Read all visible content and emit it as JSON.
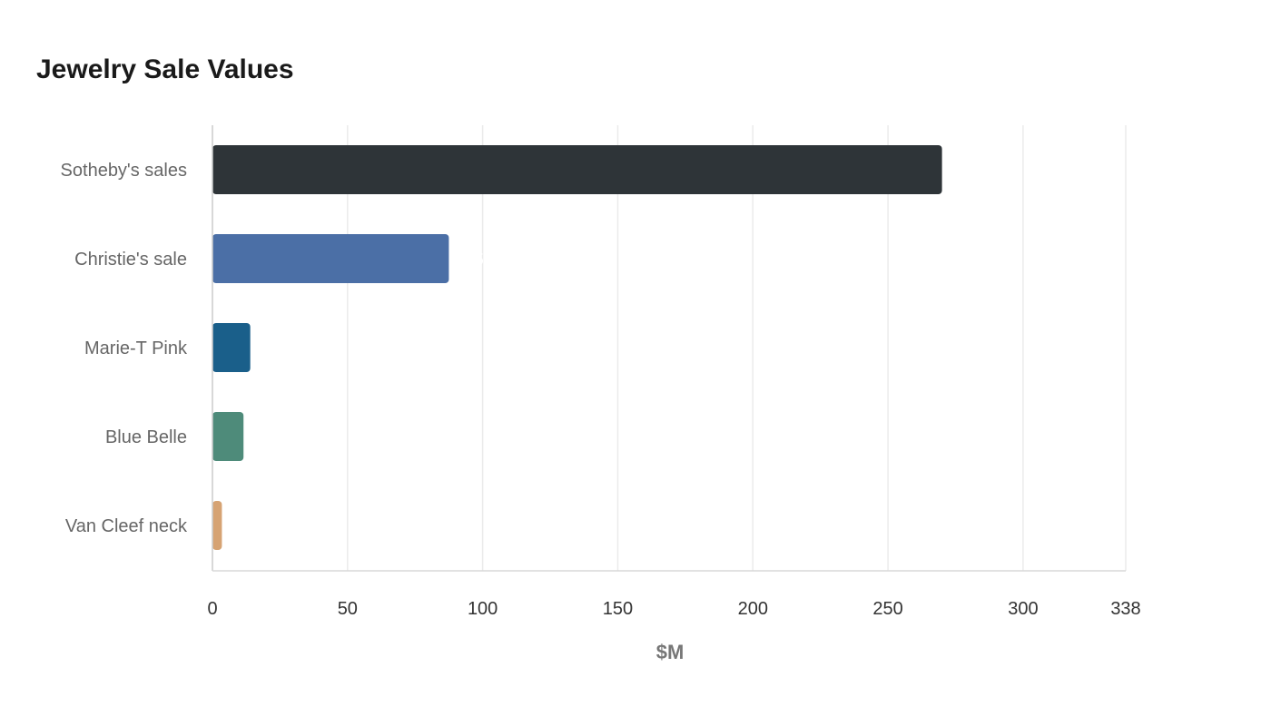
{
  "chart_data": {
    "type": "bar",
    "orientation": "horizontal",
    "title": "Jewelry Sale Values",
    "xlabel": "$M",
    "ylabel": "",
    "categories": [
      "Sotheby's sales",
      "Christie's sale",
      "Marie-T Pink",
      "Blue Belle",
      "Van Cleef neck"
    ],
    "values": [
      270,
      87.5,
      14,
      11.5,
      3.5
    ],
    "colors": [
      "#2e3438",
      "#4b6fa6",
      "#1a5f8a",
      "#4e8b7a",
      "#d6a373"
    ],
    "xlim": [
      0,
      338
    ],
    "xticks": [
      0,
      50,
      100,
      150,
      200,
      250,
      300,
      338
    ],
    "grid": true,
    "legend": "none"
  }
}
